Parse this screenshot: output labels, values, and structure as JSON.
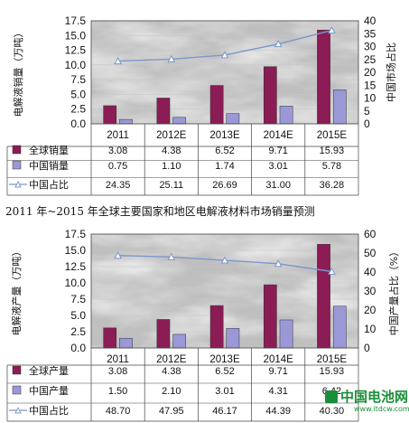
{
  "caption": "2011 年~2015 年全球主要国家和地区电解液材料市场销量预测",
  "watermark": {
    "brand": "中国电池网",
    "url": "www.itdcw.com"
  },
  "colors": {
    "global_bar": "#8b1c55",
    "china_bar": "#9a98d6",
    "share_line": "#7b97cc",
    "marble_light": "#f3f3f3",
    "marble_dark": "#bfbfbf"
  },
  "chart_data": [
    {
      "type": "bar",
      "categories": [
        "2011",
        "2012E",
        "2013E",
        "2014E",
        "2015E"
      ],
      "ylabel": "电解液销量（万吨）",
      "ylabel2": "中国市场占比",
      "ylim": [
        0,
        17.5
      ],
      "y_ticks": [
        "0.0",
        "2.5",
        "5.0",
        "7.5",
        "10.0",
        "12.5",
        "15.0",
        "17.5"
      ],
      "ylim2": [
        0,
        40
      ],
      "y2_ticks": [
        "0",
        "5",
        "10",
        "15",
        "20",
        "25",
        "30",
        "35",
        "40"
      ],
      "series": [
        {
          "name": "全球销量",
          "kind": "bar",
          "values": [
            3.08,
            4.38,
            6.52,
            9.71,
            15.93
          ],
          "labels": [
            "3.08",
            "4.38",
            "6.52",
            "9.71",
            "15.93"
          ]
        },
        {
          "name": "中国销量",
          "kind": "bar",
          "values": [
            0.75,
            1.1,
            1.74,
            3.01,
            5.78
          ],
          "labels": [
            "0.75",
            "1.10",
            "1.74",
            "3.01",
            "5.78"
          ]
        },
        {
          "name": "中国占比",
          "kind": "line",
          "axis": "right",
          "values": [
            24.35,
            25.11,
            26.69,
            31.0,
            36.28
          ],
          "labels": [
            "24.35",
            "25.11",
            "26.69",
            "31.00",
            "36.28"
          ]
        }
      ],
      "legend": "table-below"
    },
    {
      "type": "bar",
      "categories": [
        "2011",
        "2012E",
        "2013E",
        "2014E",
        "2015E"
      ],
      "ylabel": "电解液产量（万吨）",
      "ylabel2": "中国产量占比（%）",
      "ylim": [
        0,
        17.5
      ],
      "y_ticks": [
        "0.0",
        "2.5",
        "5.0",
        "7.5",
        "10.0",
        "12.5",
        "15.0",
        "17.5"
      ],
      "ylim2": [
        0,
        60
      ],
      "y2_ticks": [
        "0",
        "10",
        "20",
        "30",
        "40",
        "50",
        "60"
      ],
      "series": [
        {
          "name": "全球产量",
          "kind": "bar",
          "values": [
            3.08,
            4.38,
            6.52,
            9.71,
            15.93
          ],
          "labels": [
            "3.08",
            "4.38",
            "6.52",
            "9.71",
            "15.93"
          ]
        },
        {
          "name": "中国产量",
          "kind": "bar",
          "values": [
            1.5,
            2.1,
            3.01,
            4.31,
            6.42
          ],
          "labels": [
            "1.50",
            "2.10",
            "3.01",
            "4.31",
            "6.42"
          ]
        },
        {
          "name": "中国占比",
          "kind": "line",
          "axis": "right",
          "values": [
            48.7,
            47.95,
            46.17,
            44.39,
            40.3
          ],
          "labels": [
            "48.70",
            "47.95",
            "46.17",
            "44.39",
            "40.30"
          ]
        }
      ],
      "legend": "table-below"
    }
  ]
}
